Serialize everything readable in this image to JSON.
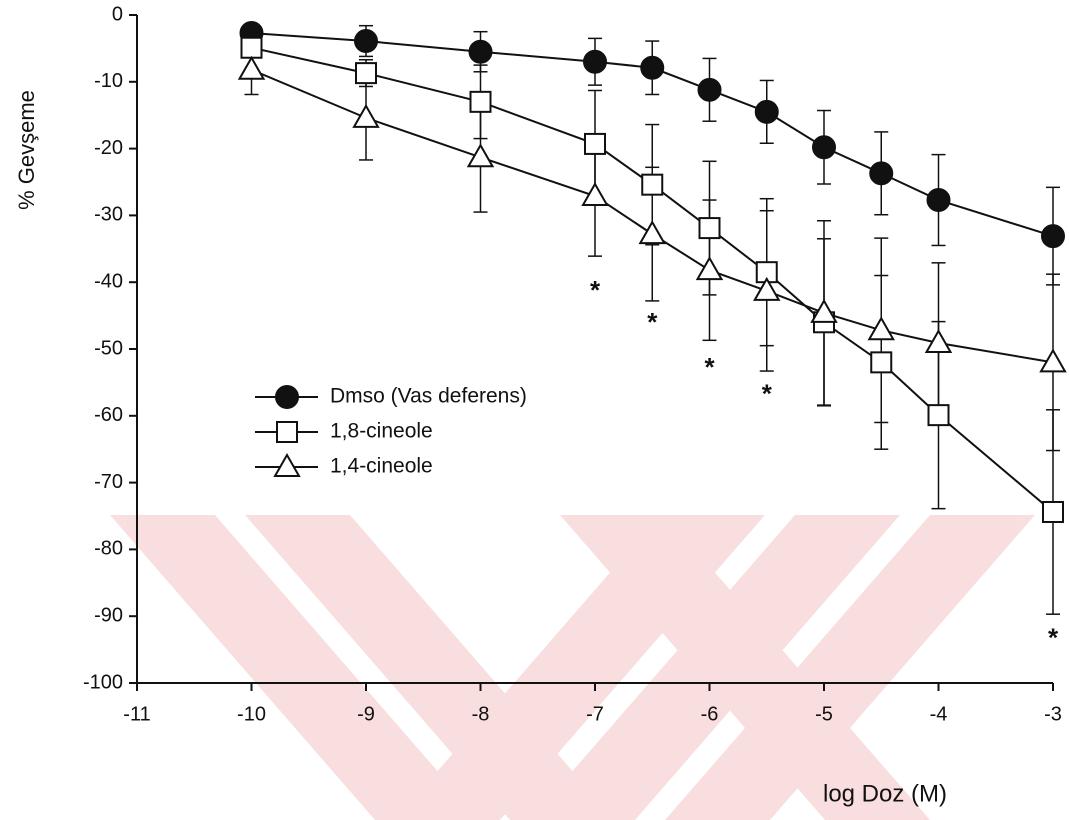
{
  "chart_data": {
    "type": "line",
    "x_label": "log Doz (M)",
    "y_label": "% Gevşeme",
    "xlim": [
      -11,
      -3
    ],
    "xticks": [
      -11,
      -10,
      -9,
      -8,
      -7,
      -6,
      -5,
      -4,
      -3
    ],
    "ylim": [
      -100,
      0
    ],
    "yticks": [
      0,
      -10,
      -20,
      -30,
      -40,
      -50,
      -60,
      -70,
      -80,
      -90,
      -100
    ],
    "legend": "left",
    "series": [
      {
        "name": "Dmso (Vas deferens)",
        "color": "#111111",
        "marker": "circle-filled",
        "x": [
          -10,
          -9,
          -8,
          -7,
          -6.5,
          -6,
          -5.5,
          -5,
          -4.5,
          -4,
          -3
        ],
        "values": [
          -2.7,
          -3.9,
          -5.5,
          -7,
          -7.9,
          -11.2,
          -14.5,
          -19.8,
          -23.7,
          -27.7,
          -33.1
        ],
        "errors": [
          1,
          2.3,
          3,
          3.5,
          4,
          4.7,
          4.7,
          5.5,
          6.2,
          6.8,
          7.3
        ]
      },
      {
        "name": "1,8-cineole",
        "color": "#111111",
        "marker": "square-open",
        "x": [
          -10,
          -9,
          -8,
          -7,
          -6.5,
          -6,
          -5.5,
          -5,
          -4.5,
          -4,
          -3
        ],
        "values": [
          -4.9,
          -8.7,
          -13,
          -19.3,
          -25.4,
          -31.9,
          -38.5,
          -46,
          -52,
          -59.9,
          -74.4
        ],
        "errors": [
          1,
          2,
          5.5,
          8,
          9,
          10,
          11,
          12.5,
          13,
          14,
          15.3
        ]
      },
      {
        "name": "1,4-cineole",
        "color": "#111111",
        "marker": "triangle-open",
        "x": [
          -10,
          -9,
          -8,
          -7,
          -6.5,
          -6,
          -5.5,
          -5,
          -4.5,
          -4,
          -3
        ],
        "values": [
          -8.2,
          -15.4,
          -21.3,
          -27.1,
          -32.8,
          -38.2,
          -41.3,
          -44.6,
          -47.2,
          -49.1,
          -52
        ],
        "errors": [
          3.7,
          6.3,
          8.2,
          9,
          10,
          10.5,
          12,
          13.8,
          13.8,
          12,
          13.2
        ]
      }
    ],
    "annotations": [
      {
        "text": "*",
        "x": -7,
        "y": -41.5
      },
      {
        "text": "*",
        "x": -6.5,
        "y": -46.3
      },
      {
        "text": "*",
        "x": -6,
        "y": -53
      },
      {
        "text": "*",
        "x": -5.5,
        "y": -57
      },
      {
        "text": "*",
        "x": -3,
        "y": -93.5
      }
    ]
  }
}
